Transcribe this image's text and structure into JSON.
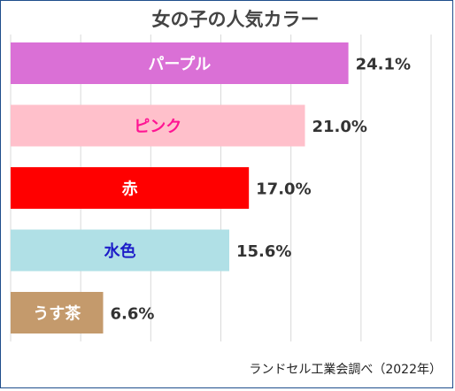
{
  "chart_data": {
    "type": "bar",
    "orientation": "horizontal",
    "title": "女の子の人気カラー",
    "source": "ランドセル工業会調べ（2022年）",
    "categories": [
      "パープル",
      "ピンク",
      "赤",
      "水色",
      "うす茶"
    ],
    "values": [
      24.1,
      21.0,
      17.0,
      15.6,
      6.6
    ],
    "value_labels": [
      "24.1%",
      "21.0%",
      "17.0%",
      "15.6%",
      "6.6%"
    ],
    "unit": "%",
    "xlim": [
      0,
      30
    ],
    "grid": "vertical",
    "bar_colors": [
      "#da70d6",
      "#ffc0cb",
      "#ff0000",
      "#b0e0e6",
      "#c49a6c"
    ],
    "label_colors": [
      "#ffffff",
      "#ff1493",
      "#ffffff",
      "#1c1cc8",
      "#ffffff"
    ]
  }
}
